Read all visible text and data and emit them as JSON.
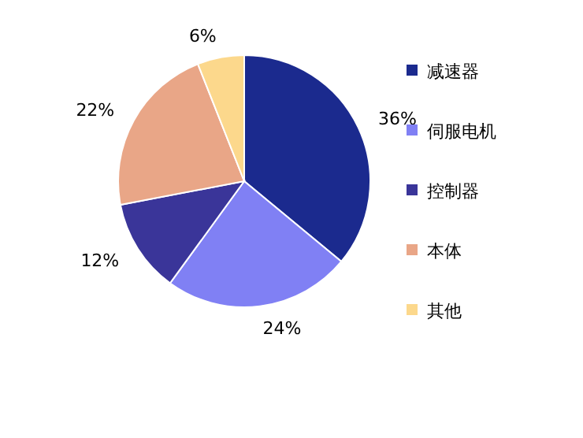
{
  "chart_data": {
    "type": "pie",
    "categories": [
      "减速器",
      "伺服电机",
      "控制器",
      "本体",
      "其他"
    ],
    "values": [
      36,
      24,
      12,
      22,
      6
    ],
    "colors": [
      "#1b2a8e",
      "#8080f4",
      "#3a3599",
      "#e9a687",
      "#fcd88c"
    ],
    "value_labels": [
      "36%",
      "24%",
      "12%",
      "22%",
      "6%"
    ],
    "legend": "right"
  }
}
